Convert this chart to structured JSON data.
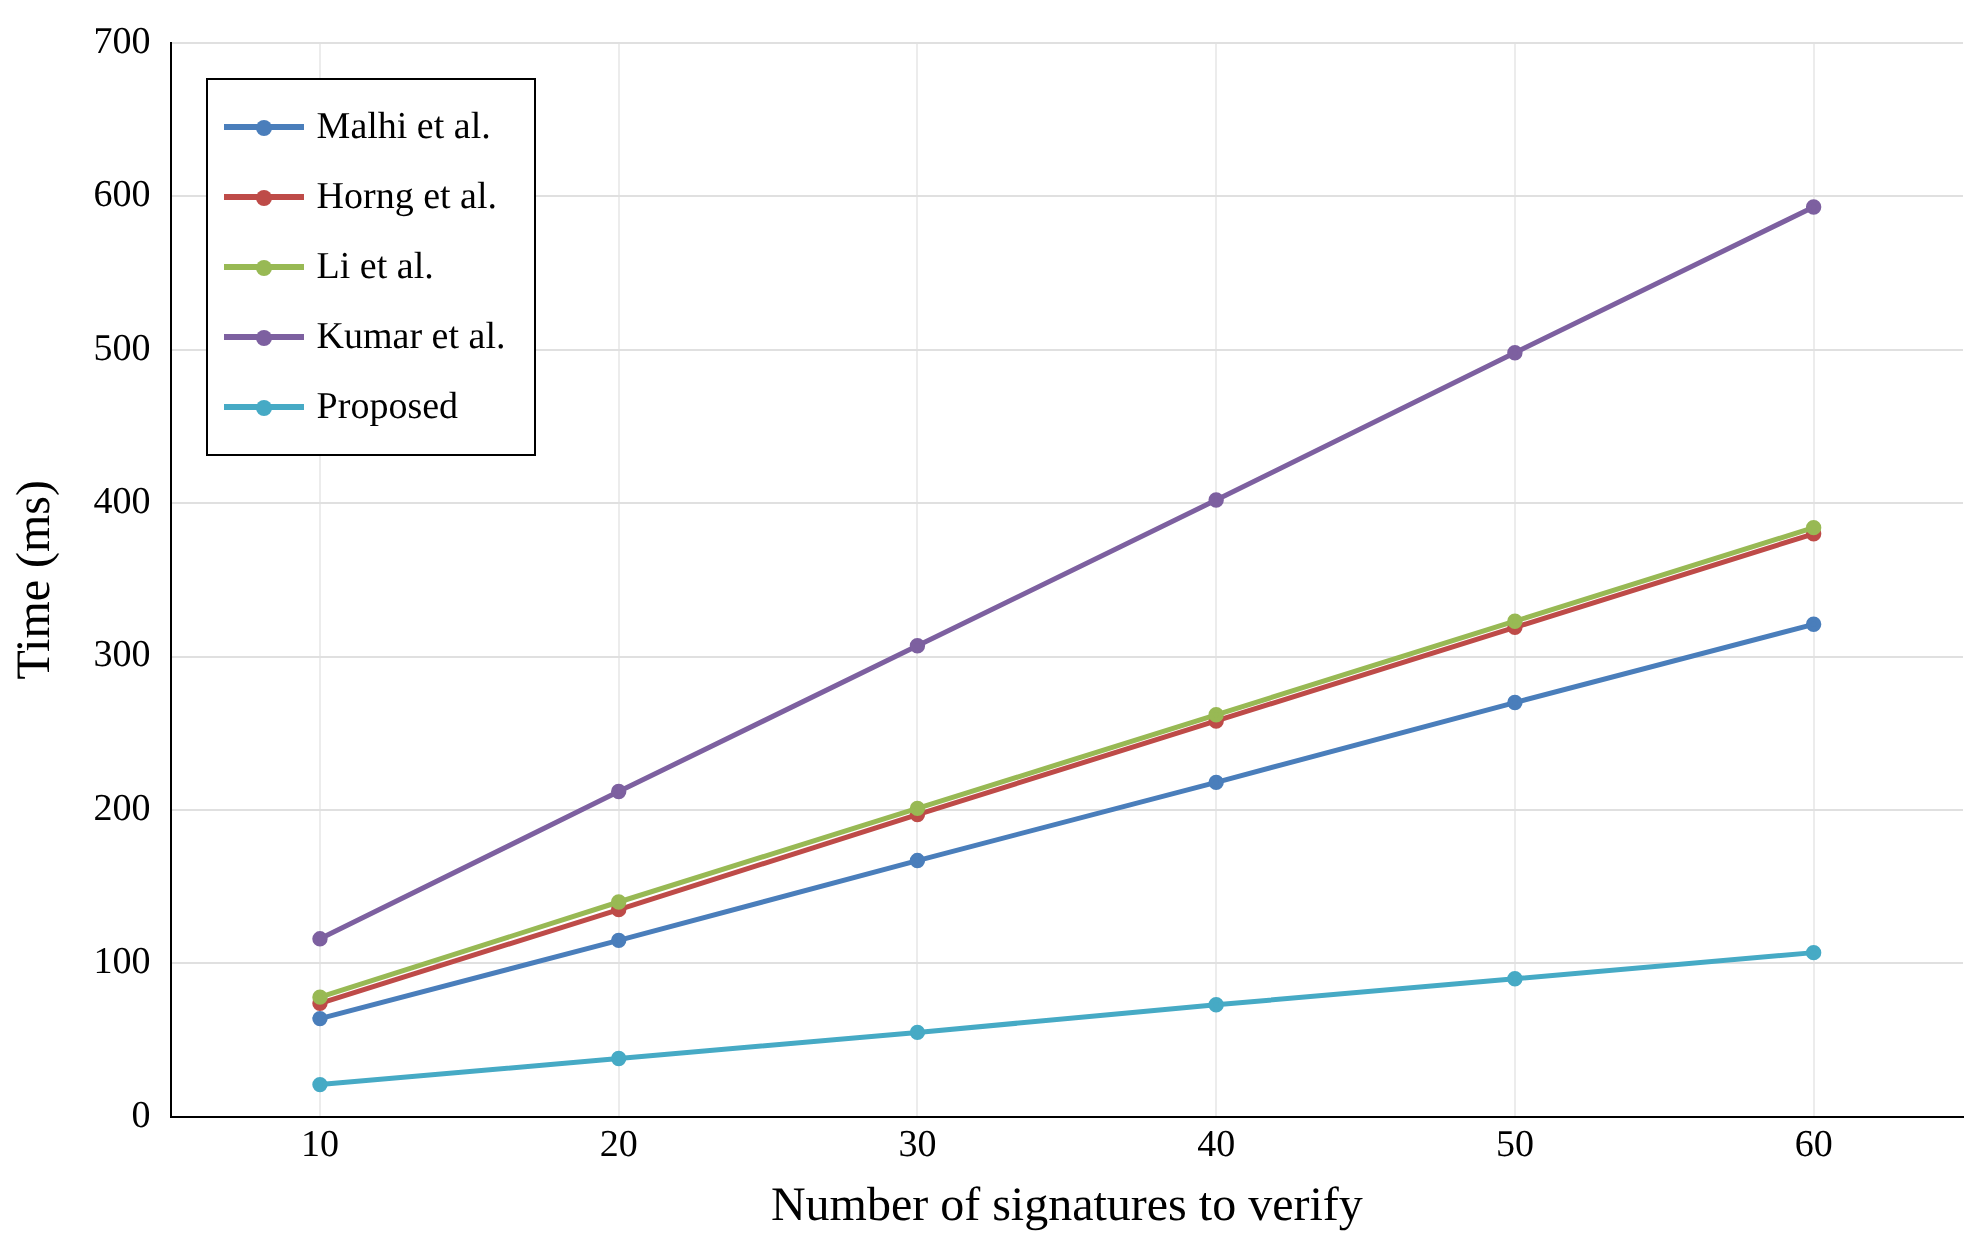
{
  "chart_data": {
    "type": "line",
    "xlabel": "Number of signatures to verify",
    "ylabel": "Time (ms)",
    "x": [
      10,
      20,
      30,
      40,
      50,
      60
    ],
    "xlim": [
      5,
      65
    ],
    "xticks": [
      10,
      20,
      30,
      40,
      50,
      60
    ],
    "ylim": [
      0,
      700
    ],
    "yticks": [
      0,
      100,
      200,
      300,
      400,
      500,
      600,
      700
    ],
    "grid": true,
    "legend": "top left",
    "marker": "circle",
    "line_style": "solid",
    "series": [
      {
        "name": "Malhi et al.",
        "color": "#4a7ebb",
        "values": [
          64,
          115,
          167,
          218,
          270,
          321
        ]
      },
      {
        "name": "Horng et al.",
        "color": "#be4b48",
        "values": [
          74,
          135,
          197,
          258,
          319,
          380
        ]
      },
      {
        "name": "Li et al.",
        "color": "#98b954",
        "values": [
          78,
          140,
          201,
          262,
          323,
          384
        ]
      },
      {
        "name": "Kumar et al.",
        "color": "#7d60a0",
        "values": [
          116,
          212,
          307,
          402,
          498,
          593
        ]
      },
      {
        "name": "Proposed",
        "color": "#46aac5",
        "values": [
          21,
          38,
          55,
          73,
          90,
          107
        ]
      }
    ]
  }
}
